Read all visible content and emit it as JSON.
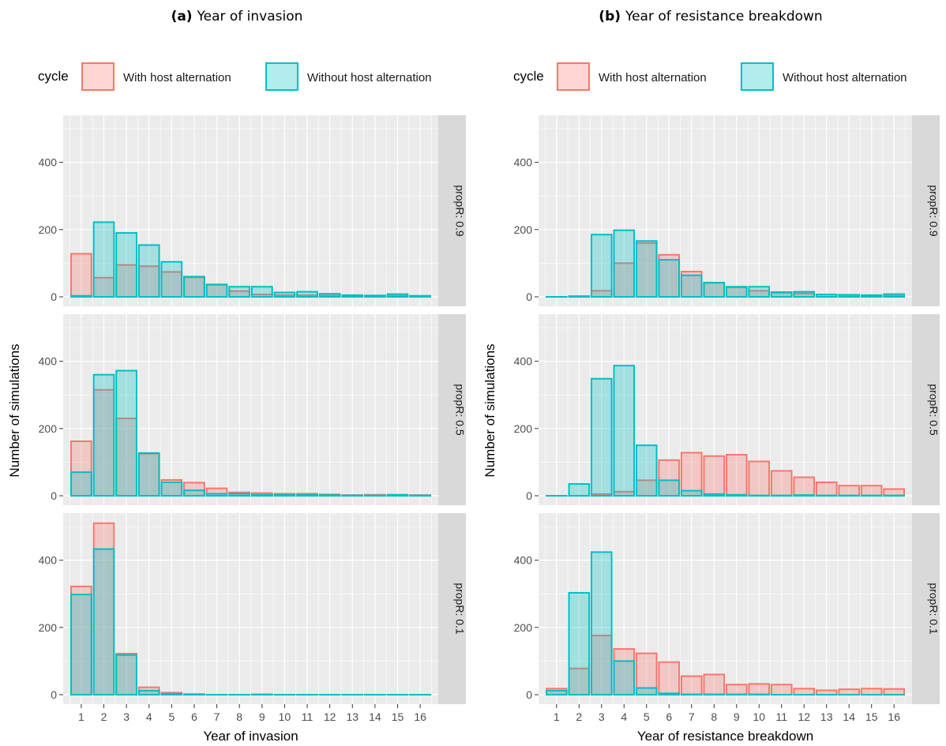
{
  "legend": {
    "title": "cycle",
    "items": [
      {
        "label": "With host alternation",
        "stroke": "#F8766D",
        "fill": "#F8766D"
      },
      {
        "label": "Without host alternation",
        "stroke": "#00BFC4",
        "fill": "#00BFC4"
      }
    ]
  },
  "colors": {
    "panel_bg": "#EBEBEB",
    "grid": "#ffffff",
    "strip_bg": "#D9D9D9"
  },
  "chart_data": [
    {
      "type": "bar",
      "panel_tag": "(a)",
      "title": "Year of invasion",
      "xlabel": "Year of invasion",
      "ylabel": "Number of simulations",
      "categories": [
        "1",
        "2",
        "3",
        "4",
        "5",
        "6",
        "7",
        "8",
        "9",
        "10",
        "11",
        "12",
        "13",
        "14",
        "15",
        "16"
      ],
      "ylim": [
        0,
        540
      ],
      "yticks": [
        0,
        200,
        400
      ],
      "facets": [
        {
          "strip": "propR: 0.9",
          "series": [
            {
              "name": "With host alternation",
              "values": [
                128,
                57,
                95,
                91,
                74,
                58,
                37,
                17,
                7,
                5,
                5,
                4,
                3,
                3,
                3,
                2
              ]
            },
            {
              "name": "Without host alternation",
              "values": [
                3,
                222,
                190,
                154,
                104,
                60,
                36,
                30,
                30,
                13,
                15,
                9,
                5,
                4,
                8,
                3
              ]
            }
          ]
        },
        {
          "strip": "propR: 0.5",
          "series": [
            {
              "name": "With host alternation",
              "values": [
                162,
                315,
                230,
                125,
                47,
                39,
                22,
                10,
                8,
                6,
                6,
                4,
                2,
                3,
                2,
                2
              ]
            },
            {
              "name": "Without host alternation",
              "values": [
                70,
                360,
                372,
                127,
                40,
                16,
                6,
                6,
                3,
                3,
                3,
                2,
                1,
                1,
                3,
                1
              ]
            }
          ]
        },
        {
          "strip": "propR: 0.1",
          "series": [
            {
              "name": "With host alternation",
              "values": [
                322,
                510,
                122,
                22,
                6,
                2,
                0,
                0,
                0,
                0,
                0,
                0,
                0,
                0,
                0,
                0
              ]
            },
            {
              "name": "Without host alternation",
              "values": [
                298,
                433,
                118,
                12,
                3,
                0,
                0,
                0,
                1,
                0,
                0,
                0,
                0,
                0,
                0,
                0
              ]
            }
          ]
        }
      ]
    },
    {
      "type": "bar",
      "panel_tag": "(b)",
      "title": "Year of resistance breakdown",
      "xlabel": "Year of resistance breakdown",
      "ylabel": "Number of simulations",
      "categories": [
        "1",
        "2",
        "3",
        "4",
        "5",
        "6",
        "7",
        "8",
        "9",
        "10",
        "11",
        "12",
        "13",
        "14",
        "15",
        "16"
      ],
      "ylim": [
        0,
        540
      ],
      "yticks": [
        0,
        200,
        400
      ],
      "facets": [
        {
          "strip": "propR: 0.9",
          "series": [
            {
              "name": "With host alternation",
              "values": [
                0,
                0,
                18,
                100,
                160,
                125,
                75,
                42,
                28,
                18,
                12,
                10,
                7,
                5,
                4,
                3
              ]
            },
            {
              "name": "Without host alternation",
              "values": [
                0,
                2,
                185,
                198,
                166,
                110,
                64,
                42,
                30,
                30,
                14,
                15,
                7,
                6,
                5,
                8
              ]
            }
          ]
        },
        {
          "strip": "propR: 0.5",
          "series": [
            {
              "name": "With host alternation",
              "values": [
                0,
                0,
                5,
                12,
                46,
                106,
                128,
                118,
                122,
                102,
                74,
                55,
                40,
                30,
                30,
                20
              ]
            },
            {
              "name": "Without host alternation",
              "values": [
                0,
                35,
                348,
                387,
                150,
                46,
                15,
                5,
                3,
                1,
                1,
                2,
                1,
                1,
                1,
                1
              ]
            }
          ]
        },
        {
          "strip": "propR: 0.1",
          "series": [
            {
              "name": "With host alternation",
              "values": [
                18,
                78,
                176,
                136,
                123,
                97,
                55,
                60,
                30,
                32,
                30,
                18,
                13,
                16,
                18,
                17
              ]
            },
            {
              "name": "Without host alternation",
              "values": [
                12,
                303,
                424,
                100,
                20,
                4,
                1,
                1,
                1,
                1,
                0,
                0,
                0,
                0,
                0,
                0
              ]
            }
          ]
        }
      ]
    }
  ]
}
